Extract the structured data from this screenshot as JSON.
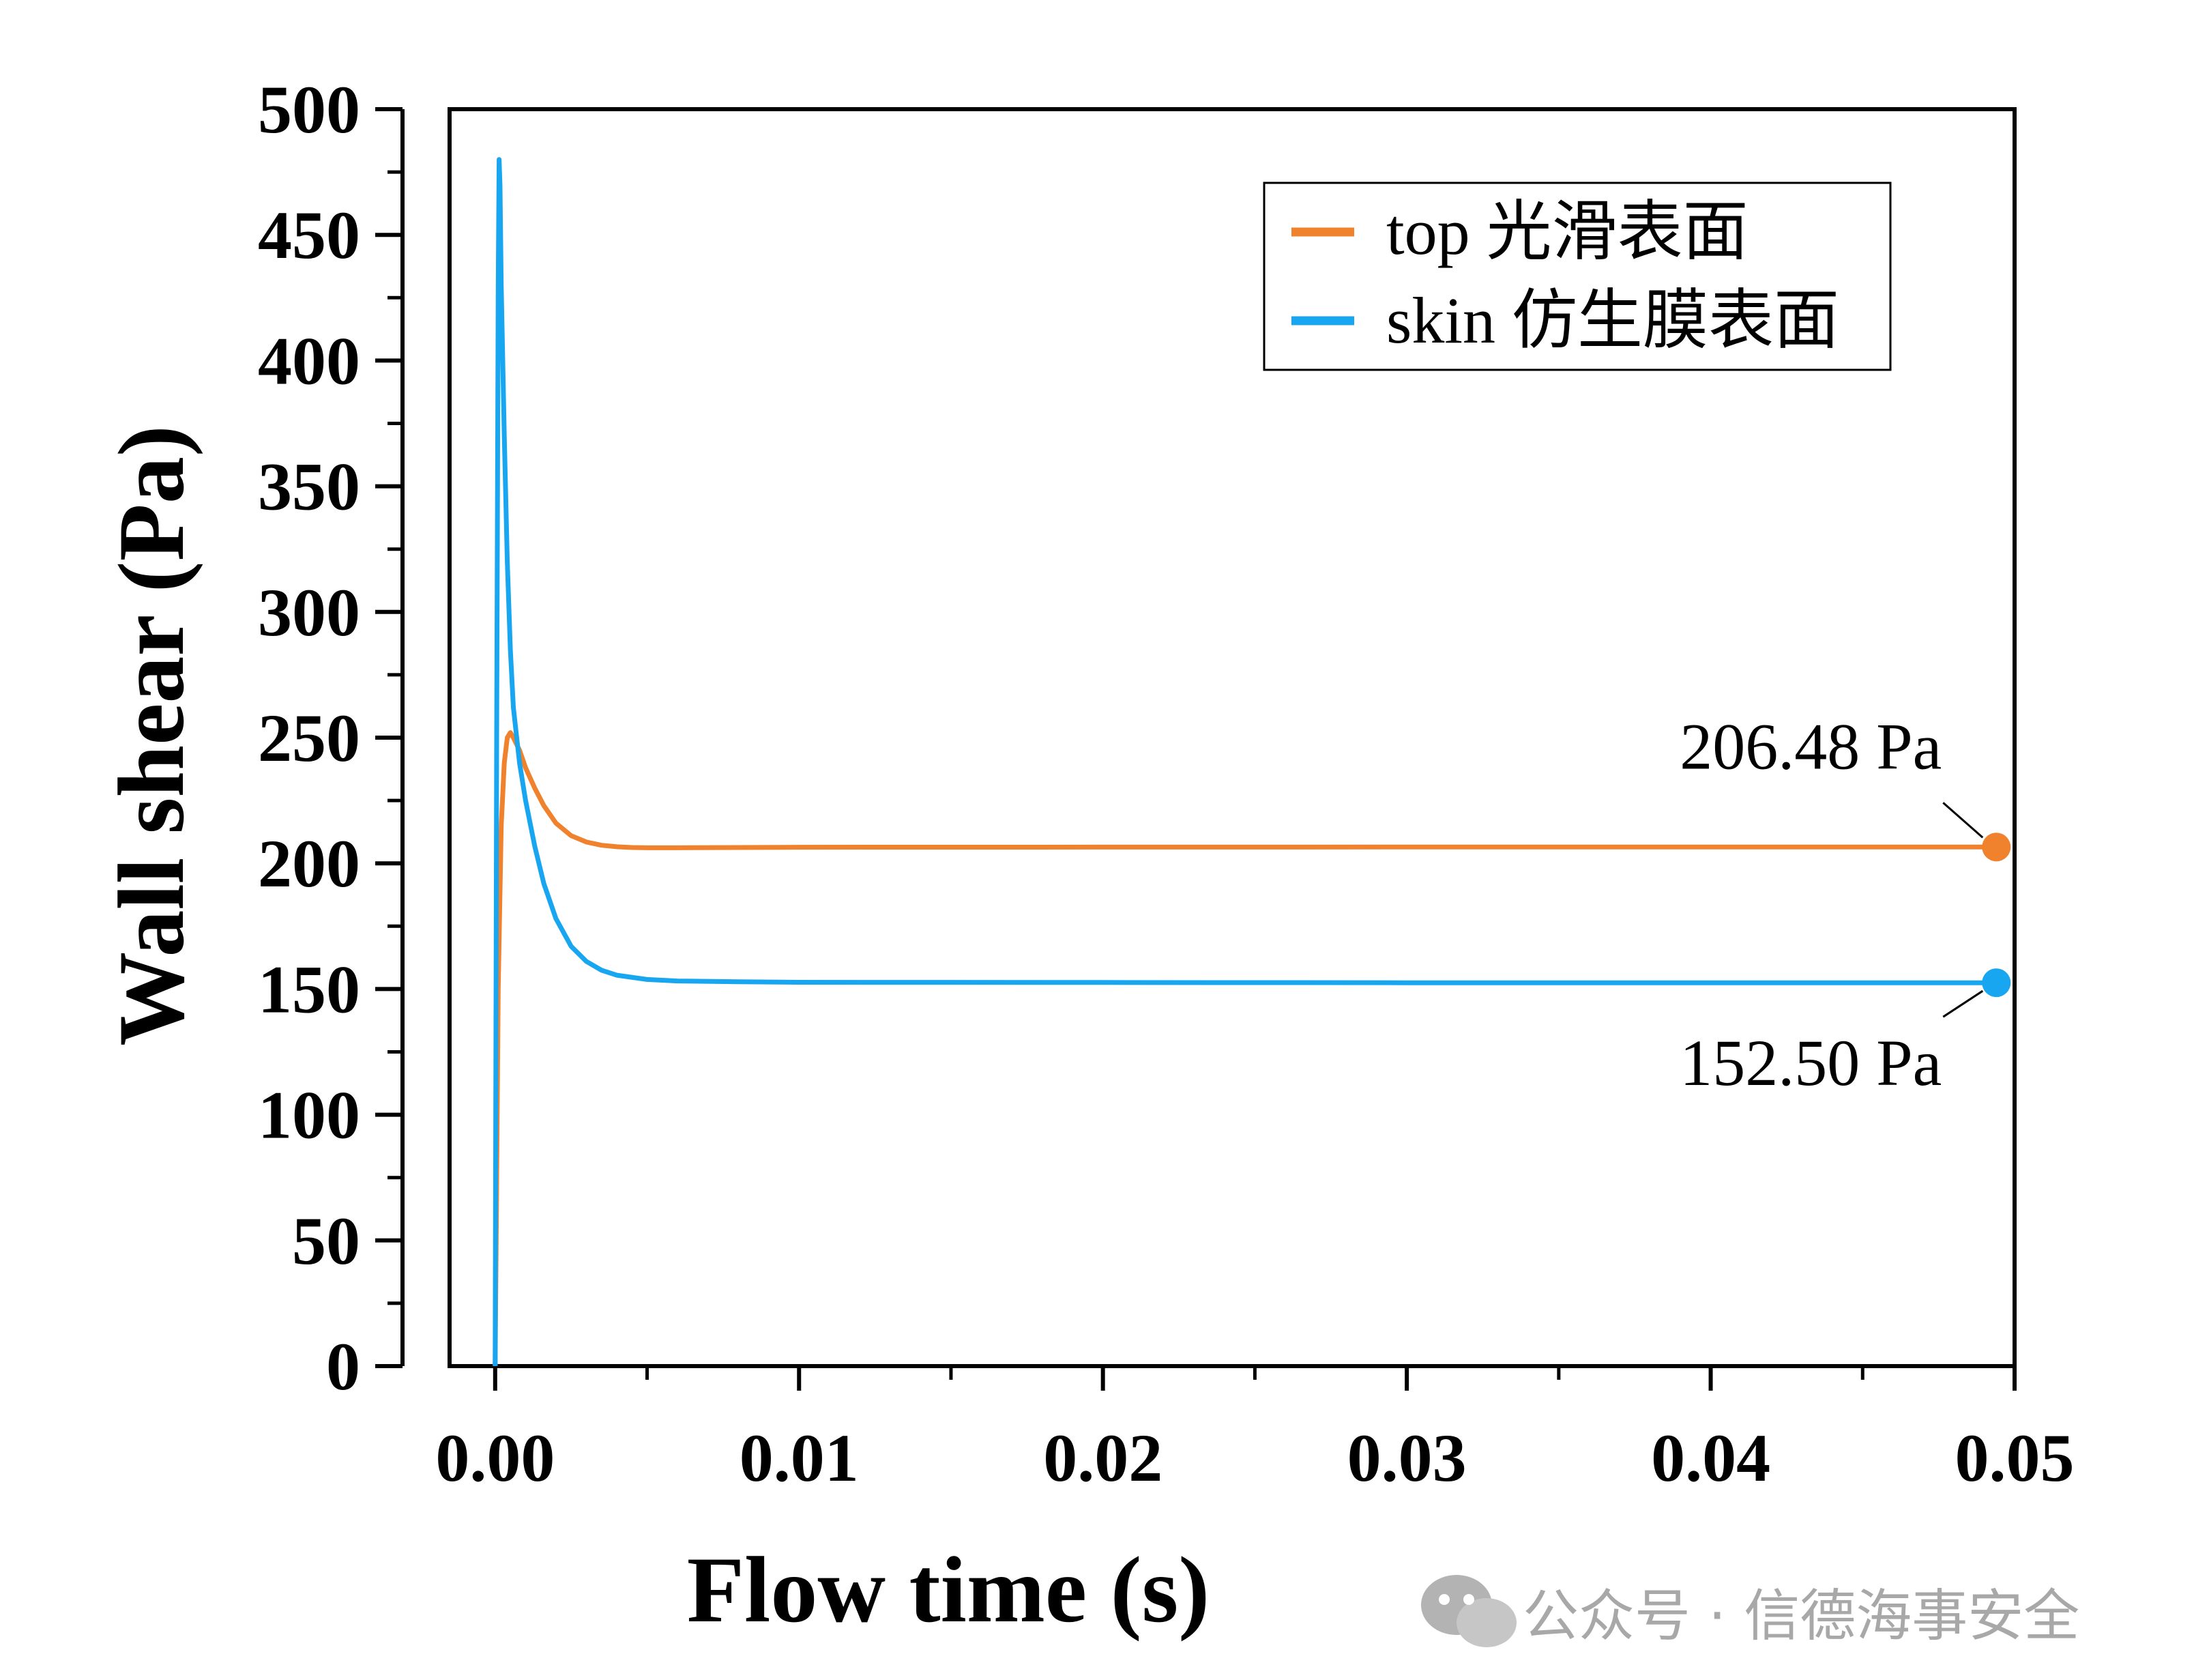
{
  "chart_data": {
    "type": "line",
    "title": "",
    "xlabel": "Flow time (s)",
    "ylabel": "Wall shear (Pa)",
    "xlim": [
      -0.0015,
      0.05
    ],
    "ylim": [
      0,
      500
    ],
    "x_ticks": [
      0.0,
      0.01,
      0.02,
      0.03,
      0.04,
      0.05
    ],
    "x_tick_labels": [
      "0.00",
      "0.01",
      "0.02",
      "0.03",
      "0.04",
      "0.05"
    ],
    "y_ticks": [
      0,
      50,
      100,
      150,
      200,
      250,
      300,
      350,
      400,
      450,
      500
    ],
    "y_tick_labels": [
      "0",
      "50",
      "100",
      "150",
      "200",
      "250",
      "300",
      "350",
      "400",
      "450",
      "500"
    ],
    "grid": false,
    "legend_position": "top-right",
    "series": [
      {
        "name": "top 光滑表面",
        "color": "#f0812d",
        "x": [
          0.0,
          0.0001,
          0.0002,
          0.0003,
          0.0004,
          0.0005,
          0.0006,
          0.0008,
          0.001,
          0.0013,
          0.0016,
          0.002,
          0.0025,
          0.003,
          0.0035,
          0.004,
          0.0045,
          0.005,
          0.006,
          0.008,
          0.01,
          0.02,
          0.03,
          0.04,
          0.0494
        ],
        "values": [
          0,
          150,
          215,
          240,
          250,
          252,
          250,
          245,
          238,
          230,
          223,
          216,
          211,
          208.5,
          207.2,
          206.6,
          206.3,
          206.2,
          206.2,
          206.3,
          206.4,
          206.45,
          206.48,
          206.48,
          206.48
        ]
      },
      {
        "name": "skin 仿生膜表面",
        "color": "#19a6f0",
        "x": [
          0.0,
          5e-05,
          0.0001,
          0.00013,
          0.00016,
          0.0002,
          0.0003,
          0.0004,
          0.0005,
          0.0006,
          0.0008,
          0.001,
          0.0013,
          0.0016,
          0.002,
          0.0025,
          0.003,
          0.0035,
          0.004,
          0.005,
          0.006,
          0.008,
          0.01,
          0.02,
          0.03,
          0.04,
          0.0494
        ],
        "values": [
          0,
          250,
          430,
          480,
          470,
          430,
          370,
          320,
          285,
          262,
          240,
          225,
          207,
          192,
          178,
          167,
          161,
          157.5,
          155.5,
          153.8,
          153.2,
          152.9,
          152.7,
          152.6,
          152.5,
          152.5,
          152.5
        ]
      }
    ],
    "annotations": [
      {
        "text": "206.48 Pa",
        "x": 0.0494,
        "y": 206.48,
        "series": "top 光滑表面"
      },
      {
        "text": "152.50 Pa",
        "x": 0.0494,
        "y": 152.5,
        "series": "skin 仿生膜表面"
      }
    ]
  },
  "watermark": {
    "text": "公众号 · 信德海事安全",
    "icon": "wechat-icon"
  }
}
